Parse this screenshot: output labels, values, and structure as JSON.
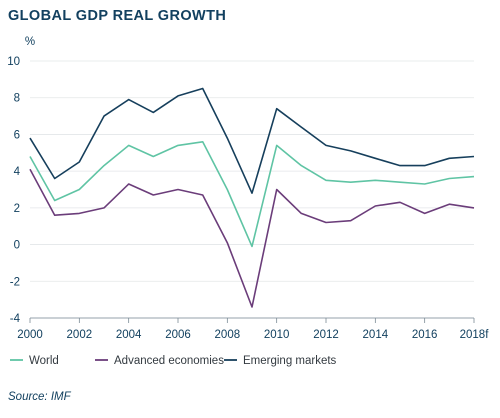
{
  "title": "GLOBAL GDP REAL GROWTH",
  "source": "Source: IMF",
  "chart_data": {
    "type": "line",
    "title": "GLOBAL GDP REAL GROWTH",
    "ylabel": "%",
    "xlabel": "",
    "ylim": [
      -4,
      10
    ],
    "yticks": [
      -4,
      -2,
      0,
      2,
      4,
      6,
      8,
      10
    ],
    "x": [
      2000,
      2001,
      2002,
      2003,
      2004,
      2005,
      2006,
      2007,
      2008,
      2009,
      2010,
      2011,
      2012,
      2013,
      2014,
      2015,
      2016,
      2017,
      2018
    ],
    "xtick_labels": [
      "2000",
      "2002",
      "2004",
      "2006",
      "2008",
      "2010",
      "2012",
      "2014",
      "2016",
      "2018f"
    ],
    "xtick_values": [
      2000,
      2002,
      2004,
      2006,
      2008,
      2010,
      2012,
      2014,
      2016,
      2018
    ],
    "grid": "horizontal",
    "legend_position": "bottom",
    "series": [
      {
        "name": "World",
        "color": "#5fc4a4",
        "values": [
          4.8,
          2.4,
          3.0,
          4.3,
          5.4,
          4.8,
          5.4,
          5.6,
          3.0,
          -0.1,
          5.4,
          4.3,
          3.5,
          3.4,
          3.5,
          3.4,
          3.3,
          3.6,
          3.7
        ]
      },
      {
        "name": "Advanced economies",
        "color": "#6b3d7a",
        "values": [
          4.1,
          1.6,
          1.7,
          2.0,
          3.3,
          2.7,
          3.0,
          2.7,
          0.1,
          -3.4,
          3.0,
          1.7,
          1.2,
          1.3,
          2.1,
          2.3,
          1.7,
          2.2,
          2.0
        ]
      },
      {
        "name": "Emerging markets",
        "color": "#163f5c",
        "values": [
          5.8,
          3.6,
          4.5,
          7.0,
          7.9,
          7.2,
          8.1,
          8.5,
          5.8,
          2.8,
          7.4,
          6.4,
          5.4,
          5.1,
          4.7,
          4.3,
          4.3,
          4.7,
          4.8
        ]
      }
    ]
  }
}
